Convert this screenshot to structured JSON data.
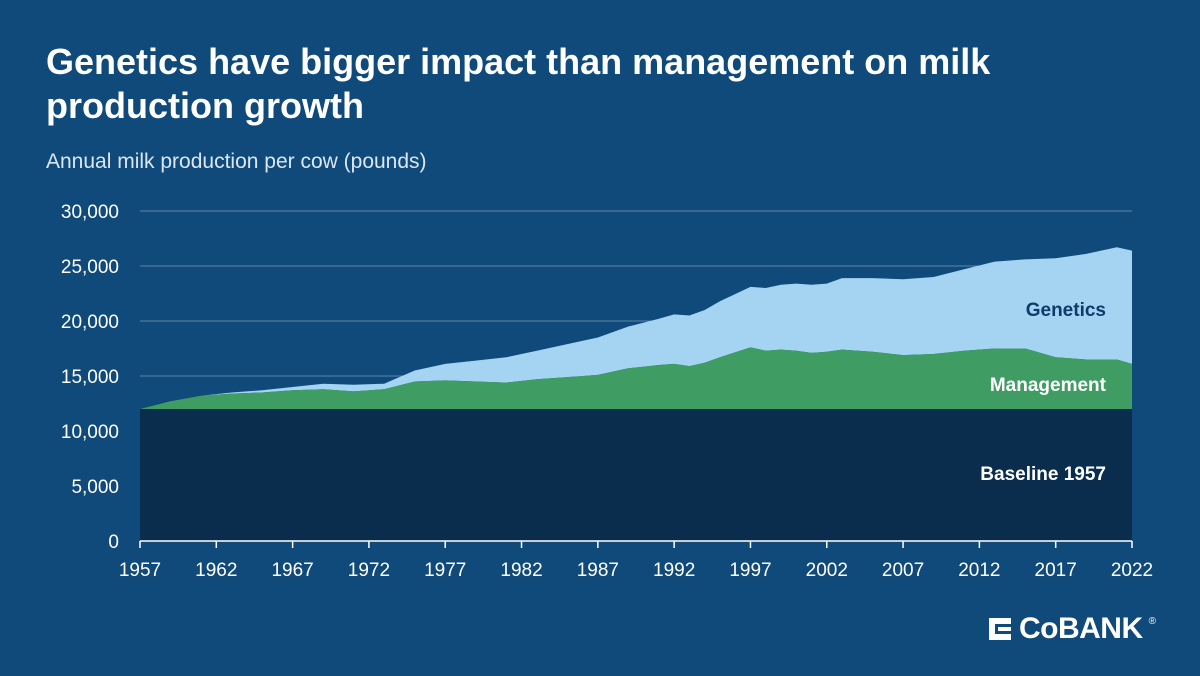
{
  "title": "Genetics have bigger impact than management on milk production growth",
  "subtitle": "Annual milk production per cow (pounds)",
  "brand": "CoBANK",
  "colors": {
    "background": "#0f4a7b",
    "baseline": "#0a2c4d",
    "management": "#3f9d63",
    "genetics": "#a5d4f2",
    "axis_text": "#ffffff",
    "grid": "#5f86ab",
    "genetics_label": "#0f3b6b"
  },
  "chart_data": {
    "type": "area",
    "stacked": true,
    "ylim": [
      0,
      30000
    ],
    "xlim": [
      1957,
      2022
    ],
    "y_ticks": [
      {
        "value": 0,
        "label": "0"
      },
      {
        "value": 5000,
        "label": "5,000"
      },
      {
        "value": 10000,
        "label": "10,000"
      },
      {
        "value": 15000,
        "label": "15,000"
      },
      {
        "value": 20000,
        "label": "20,000"
      },
      {
        "value": 25000,
        "label": "25,000"
      },
      {
        "value": 30000,
        "label": "30,000"
      }
    ],
    "x_ticks": [
      "1957",
      "1962",
      "1967",
      "1972",
      "1977",
      "1982",
      "1987",
      "1992",
      "1997",
      "2002",
      "2007",
      "2012",
      "2017",
      "2022"
    ],
    "grid": true,
    "series_labels": {
      "baseline": "Baseline 1957",
      "management": "Management",
      "genetics": "Genetics"
    },
    "baseline_value": 12000,
    "x": [
      1957,
      1959,
      1961,
      1963,
      1965,
      1967,
      1969,
      1971,
      1973,
      1975,
      1977,
      1979,
      1981,
      1983,
      1985,
      1987,
      1989,
      1991,
      1992,
      1993,
      1994,
      1995,
      1997,
      1998,
      1999,
      2000,
      2001,
      2002,
      2003,
      2005,
      2007,
      2009,
      2011,
      2013,
      2015,
      2017,
      2019,
      2021,
      2022
    ],
    "management_top": [
      12000,
      12700,
      13200,
      13400,
      13500,
      13700,
      13800,
      13600,
      13800,
      14500,
      14600,
      14500,
      14400,
      14700,
      14900,
      15100,
      15700,
      16000,
      16100,
      15900,
      16200,
      16700,
      17600,
      17300,
      17400,
      17300,
      17100,
      17200,
      17400,
      17200,
      16900,
      17000,
      17300,
      17500,
      17500,
      16700,
      16500,
      16500,
      16100
    ],
    "total": [
      12000,
      12700,
      13200,
      13500,
      13700,
      14000,
      14300,
      14200,
      14300,
      15500,
      16100,
      16400,
      16700,
      17300,
      17900,
      18500,
      19500,
      20200,
      20600,
      20500,
      21000,
      21800,
      23100,
      23000,
      23300,
      23400,
      23300,
      23400,
      23900,
      23900,
      23800,
      24000,
      24700,
      25400,
      25600,
      25700,
      26100,
      26700,
      26400
    ]
  }
}
